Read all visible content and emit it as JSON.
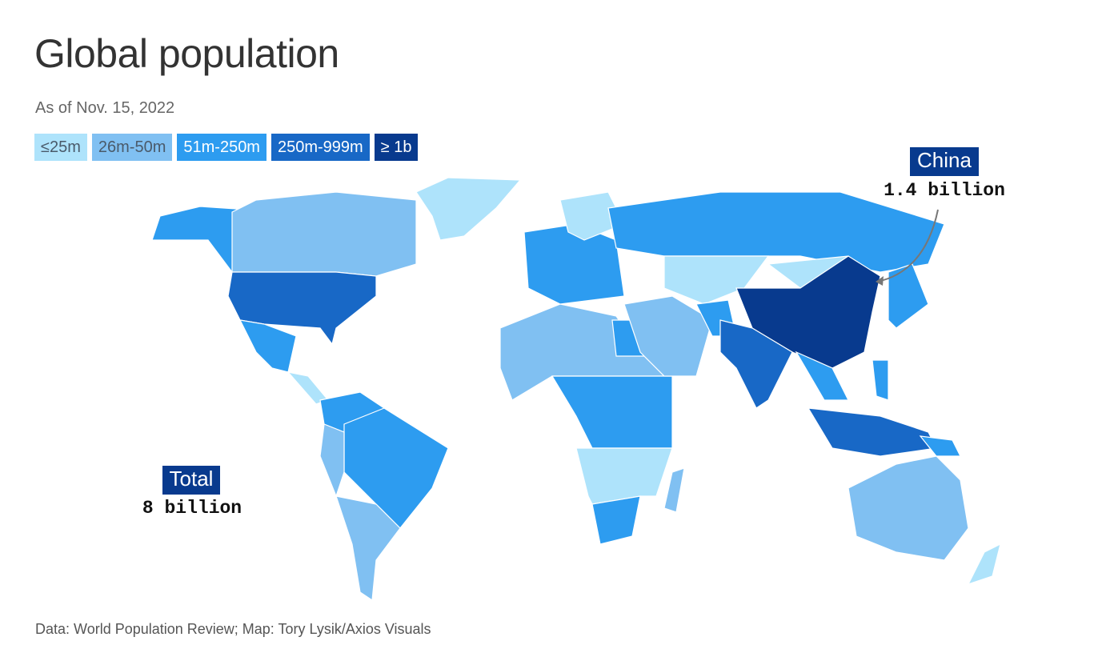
{
  "header": {
    "title": "Global population",
    "subtitle": "As of Nov. 15, 2022"
  },
  "legend": [
    {
      "label": "≤25m",
      "color": "#aee3fb"
    },
    {
      "label": "26m-50m",
      "color": "#80c0f2"
    },
    {
      "label": "51m-250m",
      "color": "#2d9cf0"
    },
    {
      "label": "250m-999m",
      "color": "#1868c6"
    },
    {
      "label": "≥ 1b",
      "color": "#083a8e"
    }
  ],
  "annotations": [
    {
      "label": "China",
      "value": "1.4 billion"
    },
    {
      "label": "Total",
      "value": "8 billion"
    }
  ],
  "source": "Data: World Population Review; Map: Tory Lysik/Axios Visuals"
}
